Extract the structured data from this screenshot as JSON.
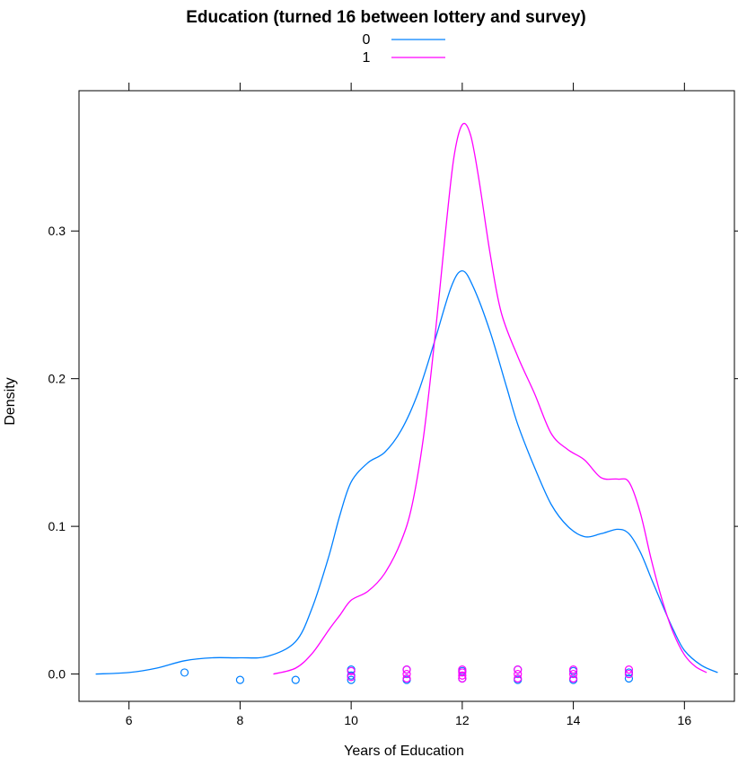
{
  "chart_data": {
    "type": "line",
    "title": "Education (turned 16 between lottery and survey)",
    "xlabel": "Years of Education",
    "ylabel": "Density",
    "xlim": [
      5.1,
      16.9
    ],
    "ylim": [
      -0.0185,
      0.395
    ],
    "xticks": [
      "6",
      "8",
      "10",
      "12",
      "14",
      "16"
    ],
    "yticks": [
      "0.0",
      "0.1",
      "0.2",
      "0.3"
    ],
    "legend_position": "top",
    "grid": false,
    "series": [
      {
        "name": "0",
        "color": "#0080ff",
        "x": [
          5.4,
          6.0,
          6.5,
          7.0,
          7.5,
          8.0,
          8.5,
          9.0,
          9.3,
          9.6,
          9.8,
          10.0,
          10.3,
          10.6,
          10.9,
          11.2,
          11.5,
          11.8,
          12.0,
          12.2,
          12.5,
          12.8,
          13.0,
          13.3,
          13.6,
          13.9,
          14.2,
          14.5,
          14.8,
          15.0,
          15.2,
          15.4,
          15.6,
          15.8,
          16.0,
          16.3,
          16.6
        ],
        "y": [
          0.0,
          0.001,
          0.004,
          0.009,
          0.011,
          0.011,
          0.012,
          0.022,
          0.045,
          0.08,
          0.108,
          0.13,
          0.143,
          0.15,
          0.165,
          0.19,
          0.225,
          0.262,
          0.273,
          0.262,
          0.232,
          0.194,
          0.169,
          0.14,
          0.115,
          0.1,
          0.093,
          0.095,
          0.098,
          0.095,
          0.083,
          0.065,
          0.047,
          0.03,
          0.016,
          0.006,
          0.001
        ]
      },
      {
        "name": "1",
        "color": "#ff00ff",
        "x": [
          8.6,
          9.0,
          9.3,
          9.6,
          9.8,
          10.0,
          10.3,
          10.6,
          10.9,
          11.1,
          11.3,
          11.5,
          11.7,
          11.85,
          12.0,
          12.15,
          12.3,
          12.5,
          12.7,
          13.0,
          13.3,
          13.6,
          13.9,
          14.2,
          14.5,
          14.8,
          15.0,
          15.2,
          15.4,
          15.6,
          15.8,
          16.0,
          16.2,
          16.4
        ],
        "y": [
          0.0,
          0.004,
          0.014,
          0.03,
          0.04,
          0.05,
          0.056,
          0.068,
          0.09,
          0.115,
          0.16,
          0.225,
          0.3,
          0.35,
          0.372,
          0.365,
          0.335,
          0.285,
          0.245,
          0.215,
          0.19,
          0.163,
          0.152,
          0.145,
          0.133,
          0.132,
          0.13,
          0.11,
          0.078,
          0.05,
          0.028,
          0.013,
          0.005,
          0.001
        ]
      }
    ],
    "rug": {
      "0": {
        "color": "#0080ff",
        "points": [
          {
            "x": 7,
            "y": 0.001
          },
          {
            "x": 8,
            "y": -0.004
          },
          {
            "x": 9,
            "y": -0.004
          },
          {
            "x": 10,
            "y": 0.003
          },
          {
            "x": 10,
            "y": -0.001
          },
          {
            "x": 10,
            "y": -0.004
          },
          {
            "x": 11,
            "y": 0.003
          },
          {
            "x": 11,
            "y": -0.004
          },
          {
            "x": 12,
            "y": 0.002
          },
          {
            "x": 12,
            "y": -0.003
          },
          {
            "x": 13,
            "y": 0.003
          },
          {
            "x": 13,
            "y": -0.004
          },
          {
            "x": 14,
            "y": 0.002
          },
          {
            "x": 14,
            "y": -0.004
          },
          {
            "x": 15,
            "y": 0.001
          },
          {
            "x": 15,
            "y": -0.003
          }
        ]
      },
      "1": {
        "color": "#ff00ff",
        "points": [
          {
            "x": 10,
            "y": 0.002
          },
          {
            "x": 10,
            "y": -0.002
          },
          {
            "x": 11,
            "y": 0.003
          },
          {
            "x": 11,
            "y": 0.0
          },
          {
            "x": 11,
            "y": -0.003
          },
          {
            "x": 12,
            "y": 0.003
          },
          {
            "x": 12,
            "y": 0.001
          },
          {
            "x": 12,
            "y": -0.001
          },
          {
            "x": 12,
            "y": -0.003
          },
          {
            "x": 13,
            "y": 0.003
          },
          {
            "x": 13,
            "y": 0.0
          },
          {
            "x": 13,
            "y": -0.003
          },
          {
            "x": 14,
            "y": 0.003
          },
          {
            "x": 14,
            "y": 0.0
          },
          {
            "x": 14,
            "y": -0.003
          },
          {
            "x": 15,
            "y": 0.003
          },
          {
            "x": 15,
            "y": 0.0
          }
        ]
      }
    }
  }
}
